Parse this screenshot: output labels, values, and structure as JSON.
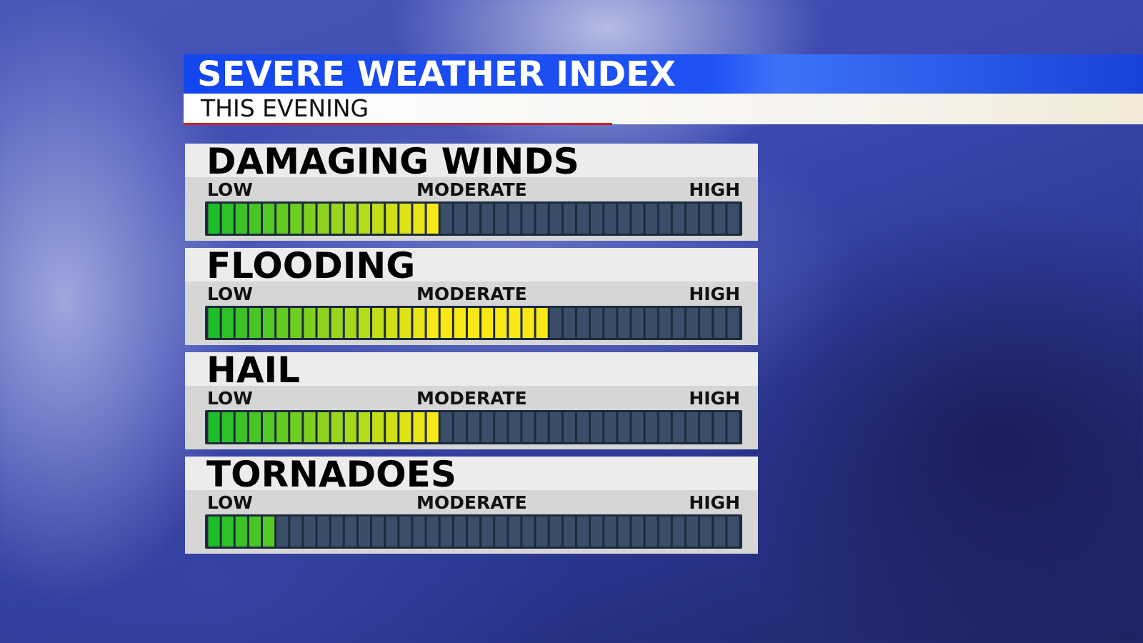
{
  "header": {
    "title": "SEVERE WEATHER INDEX",
    "subtitle": "THIS EVENING"
  },
  "segments": 39,
  "gauges": [
    {
      "label": "DAMAGING WINDS",
      "level": 17,
      "scale": [
        "LOW",
        "MODERATE",
        "HIGH"
      ]
    },
    {
      "label": "FLOODING",
      "level": 25,
      "scale": [
        "LOW",
        "MODERATE",
        "HIGH"
      ]
    },
    {
      "label": "HAIL",
      "level": 17,
      "scale": [
        "LOW",
        "MODERATE",
        "HIGH"
      ]
    },
    {
      "label": "TORNADOES",
      "level": 5,
      "scale": [
        "LOW",
        "MODERATE",
        "HIGH"
      ]
    }
  ]
}
